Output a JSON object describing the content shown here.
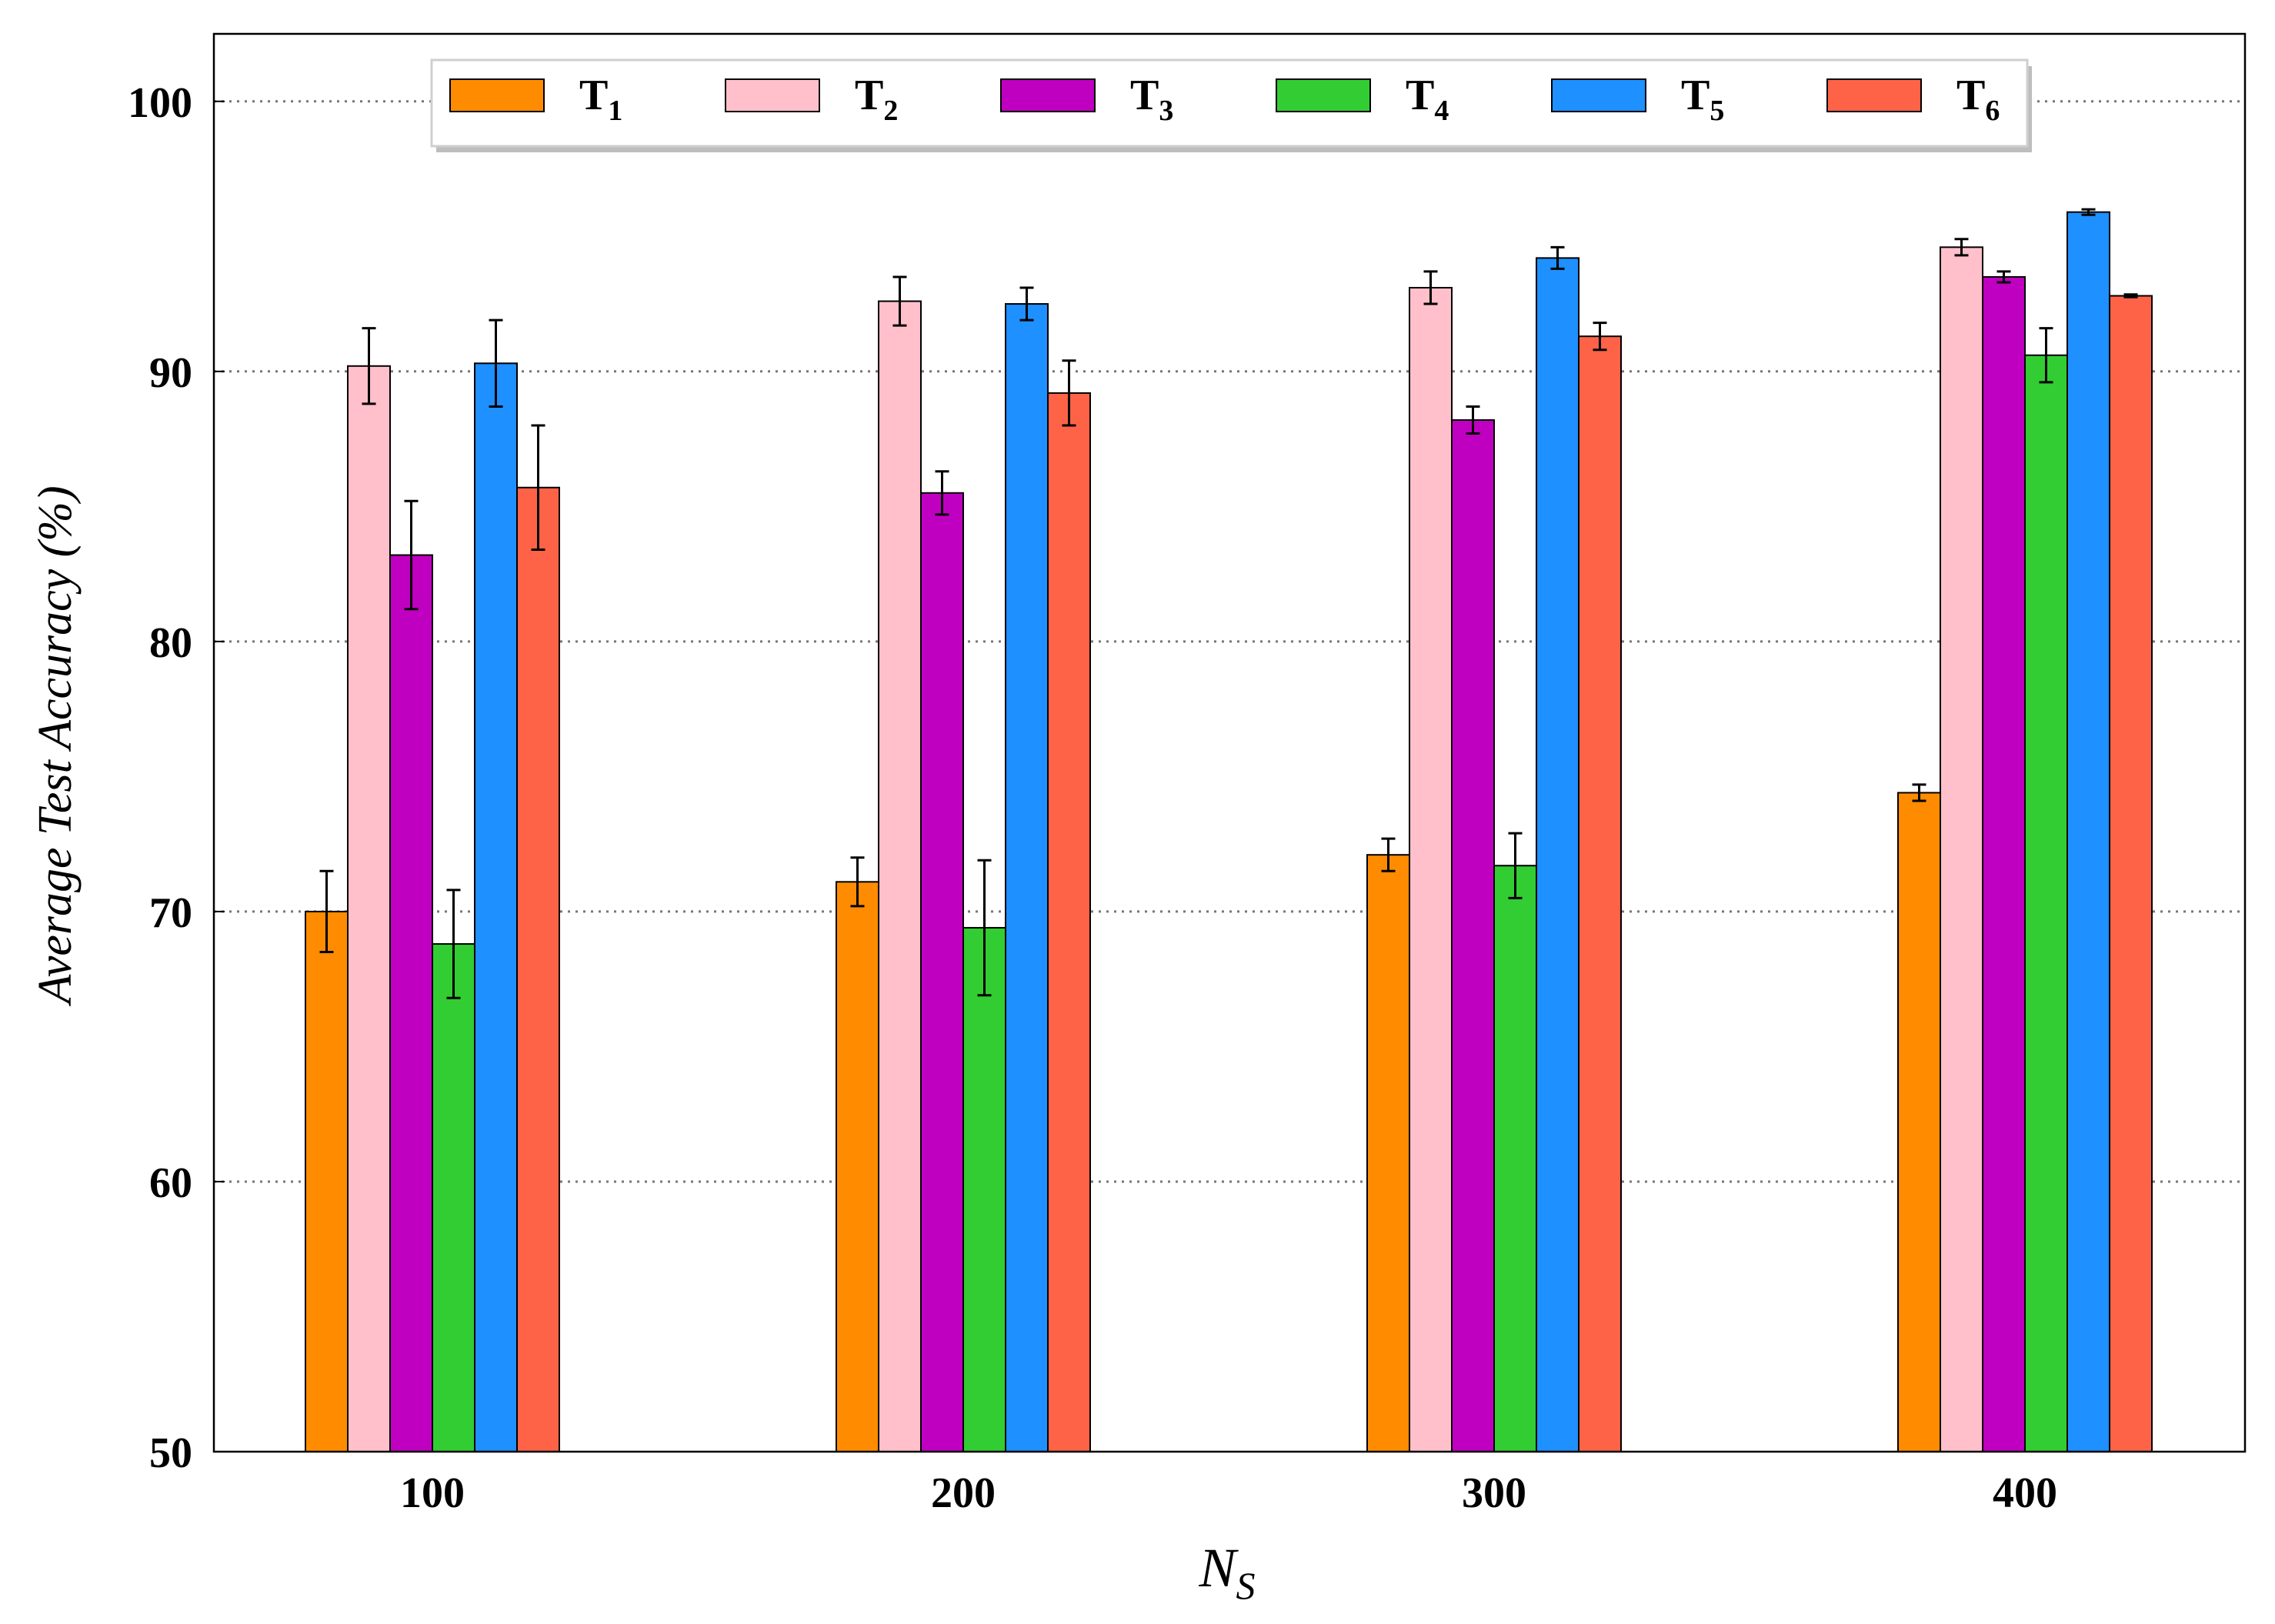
{
  "chart_data": {
    "type": "bar",
    "xlabel_main": "N",
    "xlabel_sub": "S",
    "ylabel": "Average Test Accuracy (%)",
    "categories": [
      "100",
      "200",
      "300",
      "400"
    ],
    "ylim": [
      50,
      102.5
    ],
    "yticks": [
      "50",
      "60",
      "70",
      "80",
      "90",
      "100"
    ],
    "grid": true,
    "legend_position": "top",
    "series": [
      {
        "name": "T",
        "sub": "1",
        "color": "#ff8c00",
        "values": [
          70.0,
          71.1,
          72.1,
          74.4
        ],
        "errors": [
          1.5,
          0.9,
          0.6,
          0.3
        ]
      },
      {
        "name": "T",
        "sub": "2",
        "color": "#ffc0cb",
        "values": [
          90.2,
          92.6,
          93.1,
          94.6
        ],
        "errors": [
          1.4,
          0.9,
          0.6,
          0.3
        ]
      },
      {
        "name": "T",
        "sub": "3",
        "color": "#c000c0",
        "values": [
          83.2,
          85.5,
          88.2,
          93.5
        ],
        "errors": [
          2.0,
          0.8,
          0.5,
          0.2
        ]
      },
      {
        "name": "T",
        "sub": "4",
        "color": "#32cd32",
        "values": [
          68.8,
          69.4,
          71.7,
          90.6
        ],
        "errors": [
          2.0,
          2.5,
          1.2,
          1.0
        ]
      },
      {
        "name": "T",
        "sub": "5",
        "color": "#1e90ff",
        "values": [
          90.3,
          92.5,
          94.2,
          95.9
        ],
        "errors": [
          1.6,
          0.6,
          0.4,
          0.1
        ]
      },
      {
        "name": "T",
        "sub": "6",
        "color": "#ff6347",
        "values": [
          85.7,
          89.2,
          91.3,
          92.8
        ],
        "errors": [
          2.3,
          1.2,
          0.5,
          0.05
        ]
      }
    ]
  }
}
